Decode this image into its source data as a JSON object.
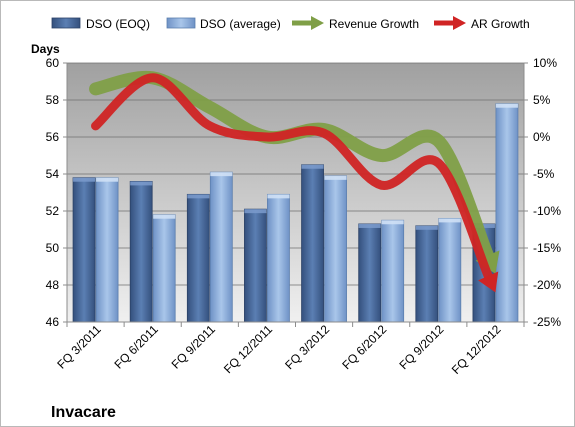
{
  "chart_data": {
    "type": "bar",
    "company": "Invacare",
    "ylabel": "Days",
    "categories": [
      "FQ 3/2011",
      "FQ 6/2011",
      "FQ 9/2011",
      "FQ 12/2011",
      "FQ 3/2012",
      "FQ 6/2012",
      "FQ 9/2012",
      "FQ 12/2012"
    ],
    "ylim": [
      46,
      60
    ],
    "yticks": [
      46,
      48,
      50,
      52,
      54,
      56,
      58,
      60
    ],
    "y2lim": [
      -25,
      10
    ],
    "y2ticks": [
      "-25%",
      "-20%",
      "-15%",
      "-10%",
      "-5%",
      "0%",
      "5%",
      "10%"
    ],
    "y2tick_values": [
      -25,
      -20,
      -15,
      -10,
      -5,
      0,
      5,
      10
    ],
    "grid": true,
    "legend_position": "top",
    "series": [
      {
        "name": "DSO (EOQ)",
        "kind": "bar",
        "axis": "left",
        "color": "#4a6a99",
        "values": [
          53.8,
          53.6,
          52.9,
          52.1,
          54.5,
          51.3,
          51.2,
          51.3
        ]
      },
      {
        "name": "DSO (average)",
        "kind": "bar",
        "axis": "left",
        "color": "#86a8d6",
        "values": [
          53.8,
          51.8,
          54.1,
          52.9,
          53.9,
          51.5,
          51.6,
          57.8
        ]
      },
      {
        "name": "Revenue Growth",
        "kind": "arrow-line",
        "axis": "right",
        "color": "#7f9f47",
        "values": [
          6.5,
          8.0,
          4.0,
          0.0,
          1.0,
          -2.5,
          -0.5,
          -18.5
        ]
      },
      {
        "name": "AR Growth",
        "kind": "arrow-line",
        "axis": "right",
        "color": "#d02424",
        "values": [
          1.5,
          8.0,
          1.5,
          0.0,
          0.5,
          -6.5,
          -3.5,
          -21.0
        ]
      }
    ]
  }
}
